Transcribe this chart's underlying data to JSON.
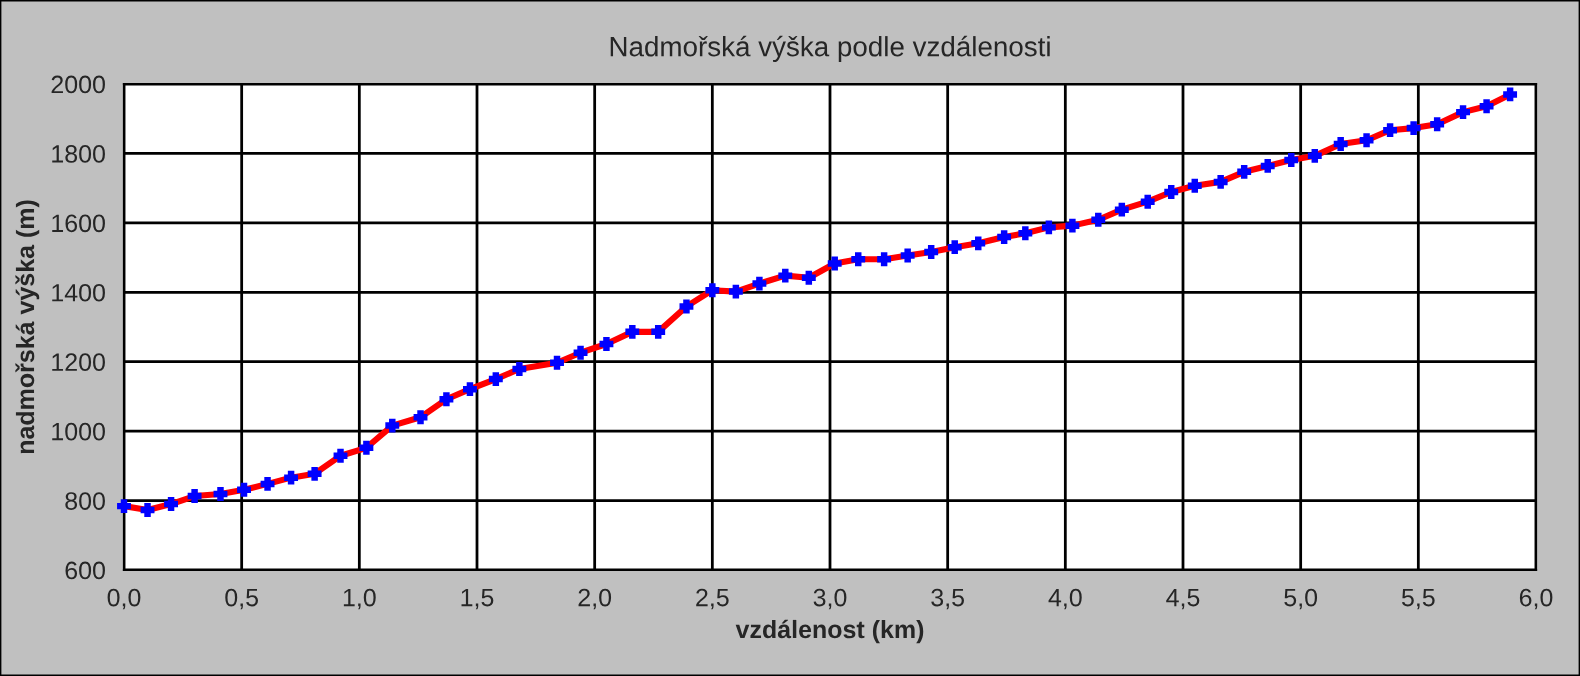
{
  "chart_data": {
    "type": "line",
    "title": "Nadmořská výška podle vzdálenosti",
    "xlabel": "vzdálenost (km)",
    "ylabel": "nadmořská výška (m)",
    "x": [
      0.0,
      0.1,
      0.2,
      0.3,
      0.41,
      0.51,
      0.61,
      0.71,
      0.81,
      0.92,
      1.03,
      1.14,
      1.26,
      1.37,
      1.47,
      1.58,
      1.68,
      1.84,
      1.94,
      2.05,
      2.16,
      2.27,
      2.39,
      2.5,
      2.6,
      2.7,
      2.81,
      2.91,
      3.02,
      3.12,
      3.23,
      3.33,
      3.43,
      3.53,
      3.63,
      3.74,
      3.83,
      3.93,
      4.03,
      4.14,
      4.24,
      4.35,
      4.45,
      4.55,
      4.66,
      4.76,
      4.86,
      4.96,
      5.06,
      5.17,
      5.28,
      5.38,
      5.48,
      5.58,
      5.69,
      5.79,
      5.89
    ],
    "series": [
      {
        "color": "#ff0000",
        "colors": [
          "#0000ff",
          "#0000ff",
          "#0000ff",
          "#0000ff",
          "#0000ff",
          "#0000ff",
          "#0000ff",
          "#0000ff",
          "#0000ff",
          "#0000ff",
          "#0000ff",
          "#0000ff",
          "#0000ff",
          "#0000ff",
          "#0000ff",
          "#0000ff",
          "#0000ff",
          "#0000ff",
          "#0000ff",
          "#0000ff",
          "#0000ff",
          "#0000ff",
          "#0000ff",
          "#0000ff",
          "#0000ff",
          "#0000ff",
          "#0000ff",
          "#0000ff",
          "#0000ff",
          "#0000ff",
          "#0000ff",
          "#0000ff",
          "#0000ff",
          "#0000ff",
          "#0000ff",
          "#0000ff",
          "#0000ff",
          "#0000ff",
          "#0000ff",
          "#0000ff",
          "#0000ff",
          "#0000ff",
          "#0000ff",
          "#0000ff",
          "#0000ff",
          "#0000ff",
          "#0000ff",
          "#0000ff",
          "#0000ff",
          "#0000ff",
          "#0000ff",
          "#0000ff",
          "#0000ff",
          "#0000ff",
          "#0000ff",
          "#0000ff",
          "#0000ff"
        ],
        "values": [
          784,
          773,
          790,
          813,
          819,
          831,
          848,
          866,
          877,
          929,
          952,
          1016,
          1040,
          1092,
          1121,
          1150,
          1179,
          1197,
          1226,
          1251,
          1286,
          1286,
          1359,
          1406,
          1402,
          1425,
          1448,
          1442,
          1483,
          1495,
          1495,
          1506,
          1516,
          1530,
          1541,
          1559,
          1570,
          1587,
          1592,
          1609,
          1638,
          1661,
          1689,
          1707,
          1718,
          1747,
          1764,
          1781,
          1793,
          1827,
          1838,
          1867,
          1873,
          1884,
          1919,
          1936,
          1970
        ]
      }
    ],
    "xlim": [
      0,
      6
    ],
    "xticks": [
      {
        "value": 0,
        "label": "0,0"
      },
      {
        "value": 0.5,
        "label": "0,5"
      },
      {
        "value": 1,
        "label": "1,0"
      },
      {
        "value": 1.5,
        "label": "1,5"
      },
      {
        "value": 2,
        "label": "2,0"
      },
      {
        "value": 2.5,
        "label": "2,5"
      },
      {
        "value": 3,
        "label": "3,0"
      },
      {
        "value": 3.5,
        "label": "3,5"
      },
      {
        "value": 4,
        "label": "4,0"
      },
      {
        "value": 4.5,
        "label": "4,5"
      },
      {
        "value": 5,
        "label": "5,0"
      },
      {
        "value": 5.5,
        "label": "5,5"
      },
      {
        "value": 6,
        "label": "6,0"
      }
    ],
    "ylim": [
      600,
      2000
    ],
    "yticks": [
      600,
      800,
      1000,
      1200,
      1400,
      1600,
      1800,
      2000
    ],
    "grid": true,
    "marker": "cross",
    "line_style": "solid"
  }
}
